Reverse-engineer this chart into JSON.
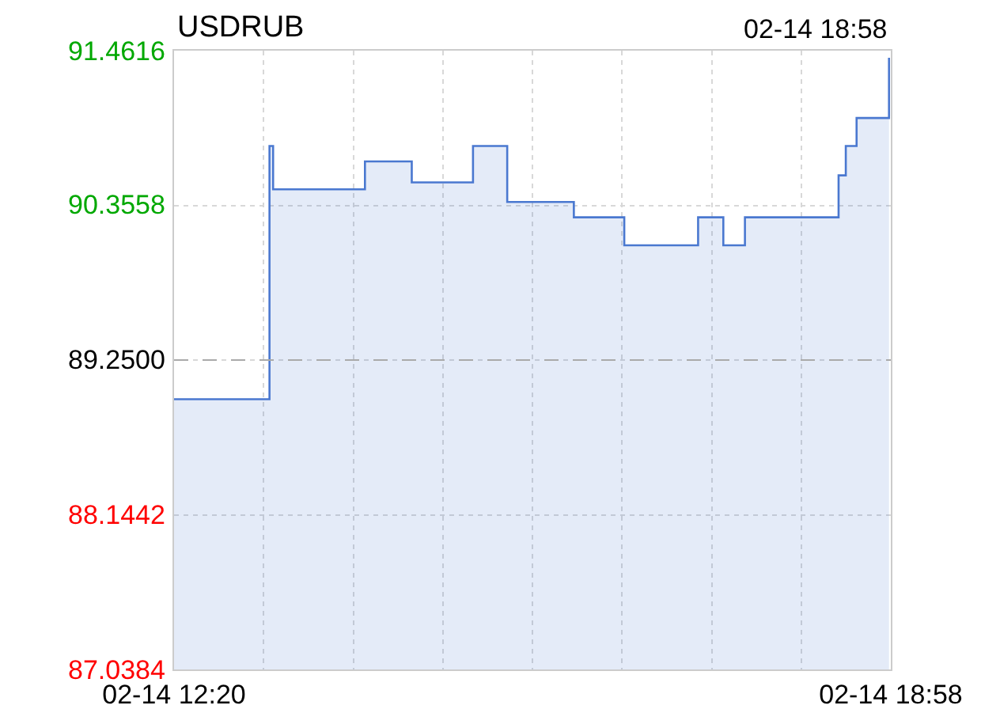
{
  "chart_data": {
    "type": "area",
    "title": "USDRUB",
    "annotations": [
      "02-14 18:58"
    ],
    "x": [
      "--02-14T12:20",
      "--02-14T13:13",
      "--02-14T13:13",
      "--02-14T13:15",
      "--02-14T13:15",
      "--02-14T14:06",
      "--02-14T14:06",
      "--02-14T14:32",
      "--02-14T14:32",
      "--02-14T15:06",
      "--02-14T15:06",
      "--02-14T15:25",
      "--02-14T15:25",
      "--02-14T16:02",
      "--02-14T16:02",
      "--02-14T16:30",
      "--02-14T16:30",
      "--02-14T17:11",
      "--02-14T17:11",
      "--02-14T17:25",
      "--02-14T17:25",
      "--02-14T17:37",
      "--02-14T17:37",
      "--02-14T18:29",
      "--02-14T18:29",
      "--02-14T18:33",
      "--02-14T18:33",
      "--02-14T18:39",
      "--02-14T18:39",
      "--02-14T18:57",
      "--02-14T18:57"
    ],
    "series": [
      {
        "color": "#4a78d0",
        "values": [
          88.97,
          88.97,
          90.78,
          90.78,
          90.47,
          90.47,
          90.67,
          90.67,
          90.52,
          90.52,
          90.78,
          90.78,
          90.38,
          90.38,
          90.27,
          90.27,
          90.07,
          90.07,
          90.27,
          90.27,
          90.07,
          90.07,
          90.27,
          90.27,
          90.57,
          90.57,
          90.78,
          90.78,
          90.98,
          90.98,
          91.41
        ]
      }
    ],
    "xlim": [
      "--02-14T12:20",
      "--02-14T18:58"
    ],
    "xticks": [
      {
        "value": "--02-14T12:20",
        "label": "02-14 12:20"
      },
      {
        "value": "--02-14T13:09:45",
        "label": null
      },
      {
        "value": "--02-14T13:59:30",
        "label": null
      },
      {
        "value": "--02-14T14:49:15",
        "label": null
      },
      {
        "value": "--02-14T15:39",
        "label": null
      },
      {
        "value": "--02-14T16:28:45",
        "label": null
      },
      {
        "value": "--02-14T17:18:30",
        "label": null
      },
      {
        "value": "--02-14T18:08:15",
        "label": null
      },
      {
        "value": "--02-14T18:58",
        "label": "02-14 18:58"
      }
    ],
    "ylim": [
      87.0384,
      91.4616
    ],
    "yticks": [
      {
        "value": 87.0384,
        "label": "87.0384"
      },
      {
        "value": 88.1442,
        "label": "88.1442"
      },
      {
        "value": 89.25,
        "label": "89.2500"
      },
      {
        "value": 90.3558,
        "label": "90.3558"
      },
      {
        "value": 91.4616,
        "label": "91.4616"
      }
    ],
    "ref_lines": [
      {
        "axis": "y",
        "value": 89.25,
        "color": "#aaaaaa",
        "line_style": "dashed"
      }
    ],
    "grid": true,
    "marker": "none",
    "line_style": "solid"
  }
}
